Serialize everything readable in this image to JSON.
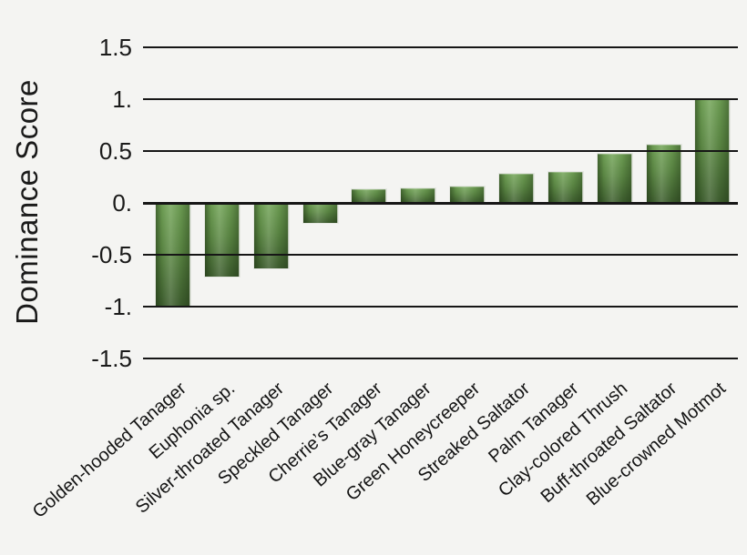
{
  "chart_data": {
    "type": "bar",
    "title": "",
    "xlabel": "",
    "ylabel": "Dominance Score",
    "categories": [
      "Golden-hooded Tanager",
      "Euphonia sp.",
      "Silver-throated Tanager",
      "Speckled Tanager",
      "Cherrie’s Tanager",
      "Blue-gray Tanager",
      "Green Honeycreeper",
      "Streaked Saltator",
      "Palm Tanager",
      "Clay-colored Thrush",
      "Buff-throated Saltator",
      "Blue-crowned Motmot"
    ],
    "values": [
      -1.0,
      -0.71,
      -0.63,
      -0.19,
      0.13,
      0.14,
      0.16,
      0.28,
      0.3,
      0.47,
      0.56,
      1.0
    ],
    "ylim": [
      -1.5,
      1.5
    ],
    "y_ticks": [
      {
        "value": 1.5,
        "label": "1.5"
      },
      {
        "value": 1.0,
        "label": "1."
      },
      {
        "value": 0.5,
        "label": "0.5"
      },
      {
        "value": 0.0,
        "label": "0."
      },
      {
        "value": -0.5,
        "label": "-0.5"
      },
      {
        "value": -1.0,
        "label": "-1."
      },
      {
        "value": -1.5,
        "label": "-1.5"
      }
    ],
    "grid": "horizontal-gridlines-over-bars",
    "legend": "none",
    "colors": {
      "background": "#f4f4f2",
      "bar_light": "#74a659",
      "bar_mid": "#5f8c47",
      "bar_dark": "#3f5f30",
      "bar_edge_dark": "#1e3310",
      "gridline": "#161616",
      "text": "#1a1a1a"
    }
  }
}
